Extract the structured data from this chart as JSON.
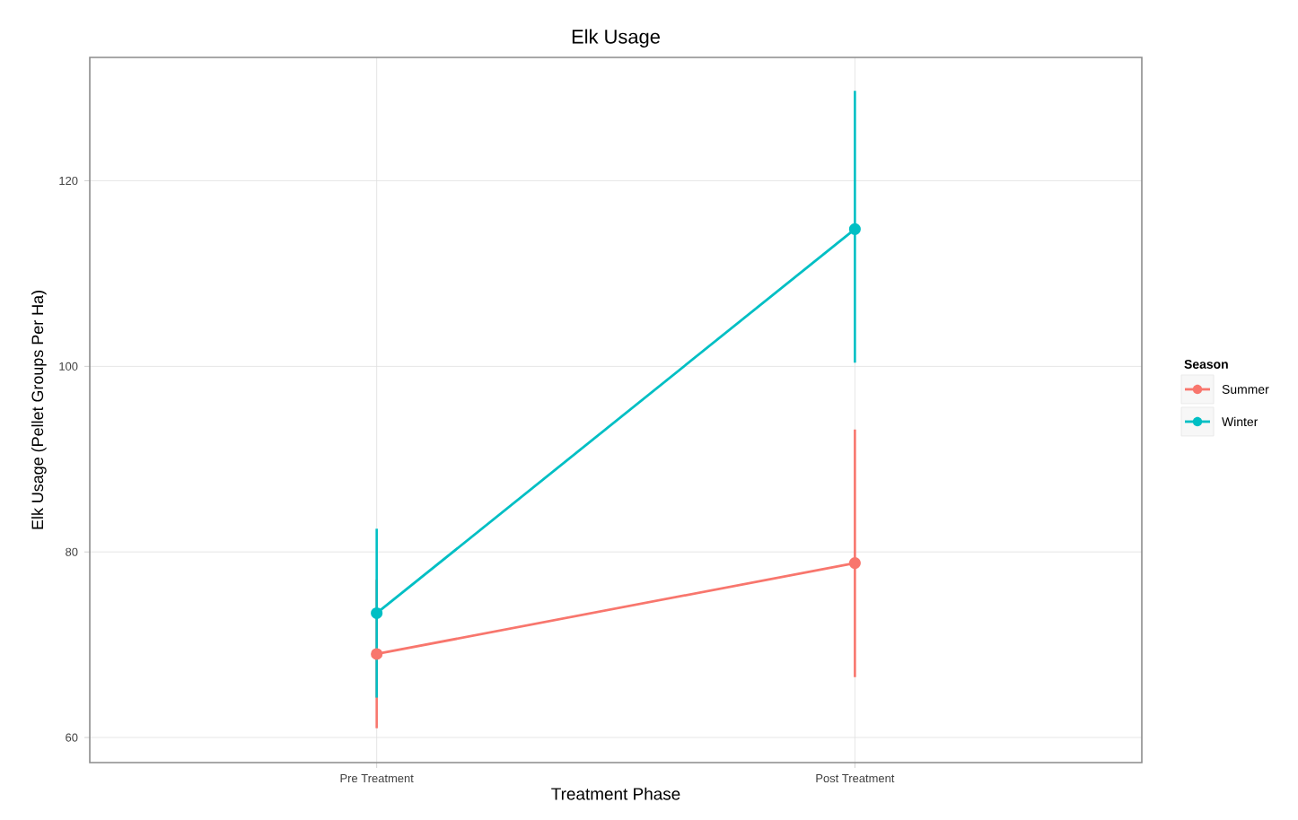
{
  "chart_data": {
    "type": "line",
    "title": "Elk Usage",
    "xlabel": "Treatment Phase",
    "ylabel": "Elk Usage (Pellet Groups Per Ha)",
    "legend_title": "Season",
    "categories": [
      "Pre Treatment",
      "Post Treatment"
    ],
    "series": [
      {
        "name": "Summer",
        "color": "#f8766d",
        "values": [
          69.0,
          78.8
        ],
        "errors": [
          [
            61.0,
            77.0
          ],
          [
            66.5,
            93.2
          ]
        ]
      },
      {
        "name": "Winter",
        "color": "#00bfc4",
        "values": [
          73.4,
          114.8
        ],
        "errors": [
          [
            64.3,
            82.5
          ],
          [
            100.4,
            129.7
          ]
        ]
      }
    ],
    "ylim": [
      57.3,
      133.3
    ],
    "yticks": [
      60,
      80,
      100,
      120
    ],
    "grid": true,
    "legend": "right",
    "marker": "circle",
    "line_style": "solid"
  }
}
